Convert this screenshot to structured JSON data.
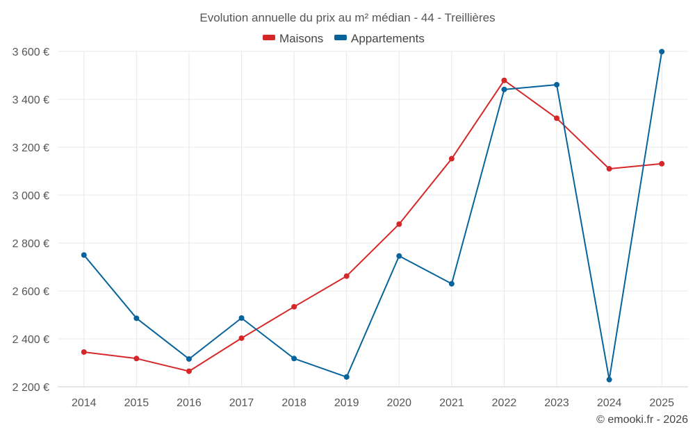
{
  "chart_data": {
    "type": "line",
    "title": "Evolution annuelle du prix au m² médian - 44 - Treillières",
    "categories": [
      "2014",
      "2015",
      "2016",
      "2017",
      "2018",
      "2019",
      "2020",
      "2021",
      "2022",
      "2023",
      "2024",
      "2025"
    ],
    "series": [
      {
        "name": "Maisons",
        "color": "#d62728",
        "values": [
          2345,
          2318,
          2265,
          2403,
          2534,
          2662,
          2879,
          3152,
          3479,
          3321,
          3110,
          3131
        ]
      },
      {
        "name": "Appartements",
        "color": "#06639b",
        "values": [
          2750,
          2486,
          2316,
          2487,
          2318,
          2241,
          2746,
          2630,
          3441,
          3461,
          2230,
          3599
        ]
      }
    ],
    "ylim": [
      2200,
      3600
    ],
    "yticks": [
      "2 200 €",
      "2 400 €",
      "2 600 €",
      "2 800 €",
      "3 000 €",
      "3 200 €",
      "3 400 €",
      "3 600 €"
    ],
    "ytick_values": [
      2200,
      2400,
      2600,
      2800,
      3000,
      3200,
      3400,
      3600
    ],
    "xlabel": "",
    "ylabel": "",
    "grid": true,
    "legend_position": "top-center",
    "credit": "© emooki.fr - 2026"
  }
}
